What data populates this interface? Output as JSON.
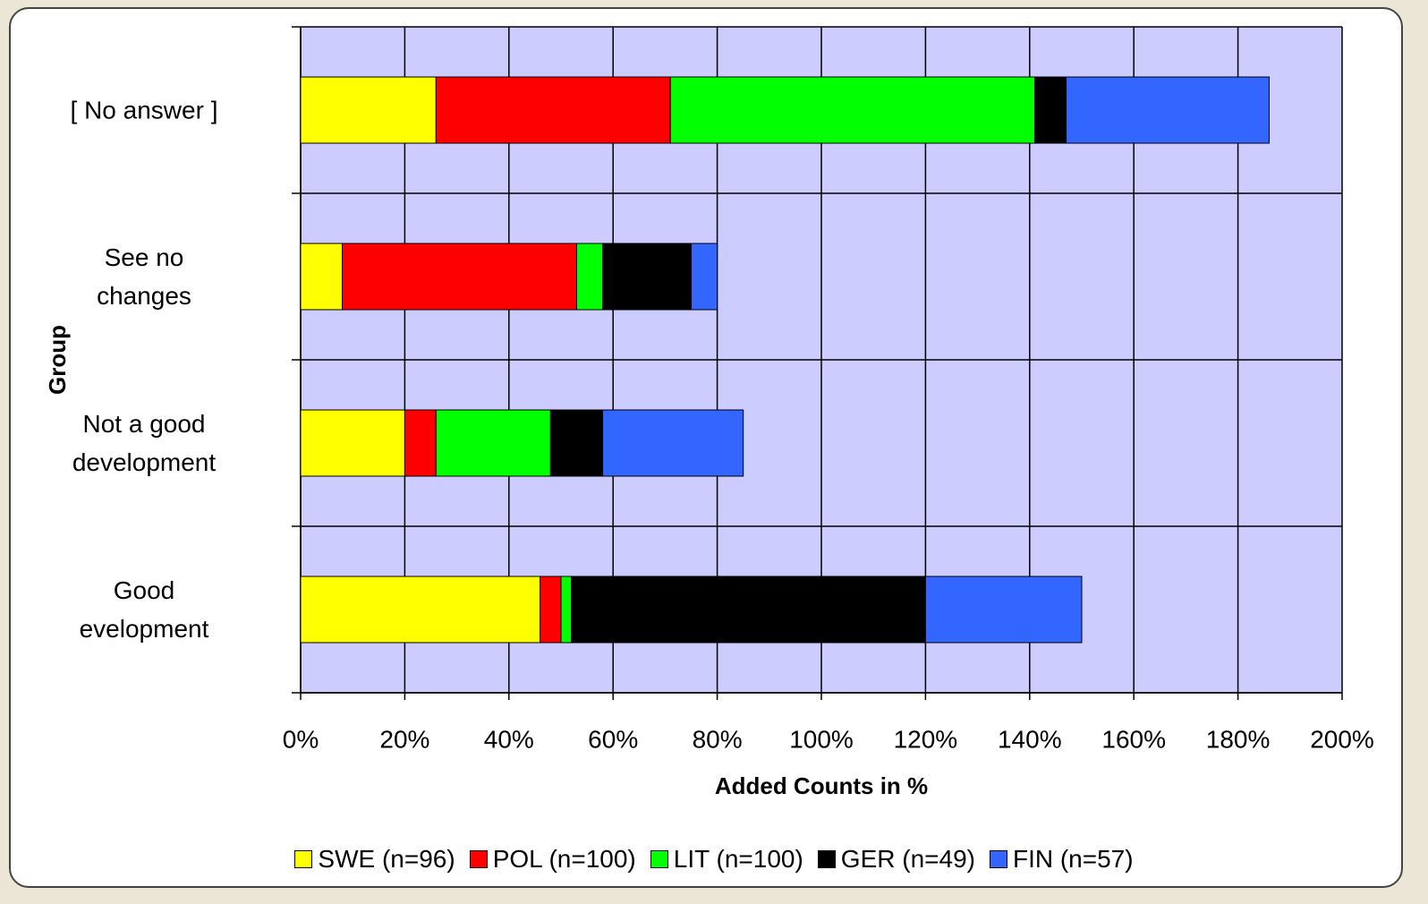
{
  "chart_data": {
    "type": "stacked_barh",
    "categories": [
      "[ No answer ]",
      "See no\nchanges",
      "Not a good\ndevelopment",
      "Good\nevelopment"
    ],
    "series": [
      {
        "name": "SWE (n=96)",
        "color": "#ffff00",
        "values": [
          26,
          8,
          20,
          46
        ]
      },
      {
        "name": "POL (n=100)",
        "color": "#ff0000",
        "values": [
          45,
          45,
          6,
          4
        ]
      },
      {
        "name": "LIT (n=100)",
        "color": "#00ff00",
        "values": [
          70,
          5,
          22,
          2
        ]
      },
      {
        "name": "GER (n=49)",
        "color": "#000000",
        "values": [
          6,
          17,
          10,
          68
        ]
      },
      {
        "name": "FIN (n=57)",
        "color": "#3366ff",
        "values": [
          39,
          5,
          27,
          30
        ]
      }
    ],
    "xlabel": "Added Counts in %",
    "ylabel": "Group",
    "xlim": [
      0,
      200
    ],
    "xticks": [
      {
        "value": 0,
        "label": "0%"
      },
      {
        "value": 20,
        "label": "20%"
      },
      {
        "value": 40,
        "label": "40%"
      },
      {
        "value": 60,
        "label": "60%"
      },
      {
        "value": 80,
        "label": "80%"
      },
      {
        "value": 100,
        "label": "100%"
      },
      {
        "value": 120,
        "label": "120%"
      },
      {
        "value": 140,
        "label": "140%"
      },
      {
        "value": 160,
        "label": "160%"
      },
      {
        "value": 180,
        "label": "180%"
      },
      {
        "value": 200,
        "label": "200%"
      }
    ],
    "grid": true,
    "legend": "bottom",
    "plot_background": "#ccccff"
  }
}
